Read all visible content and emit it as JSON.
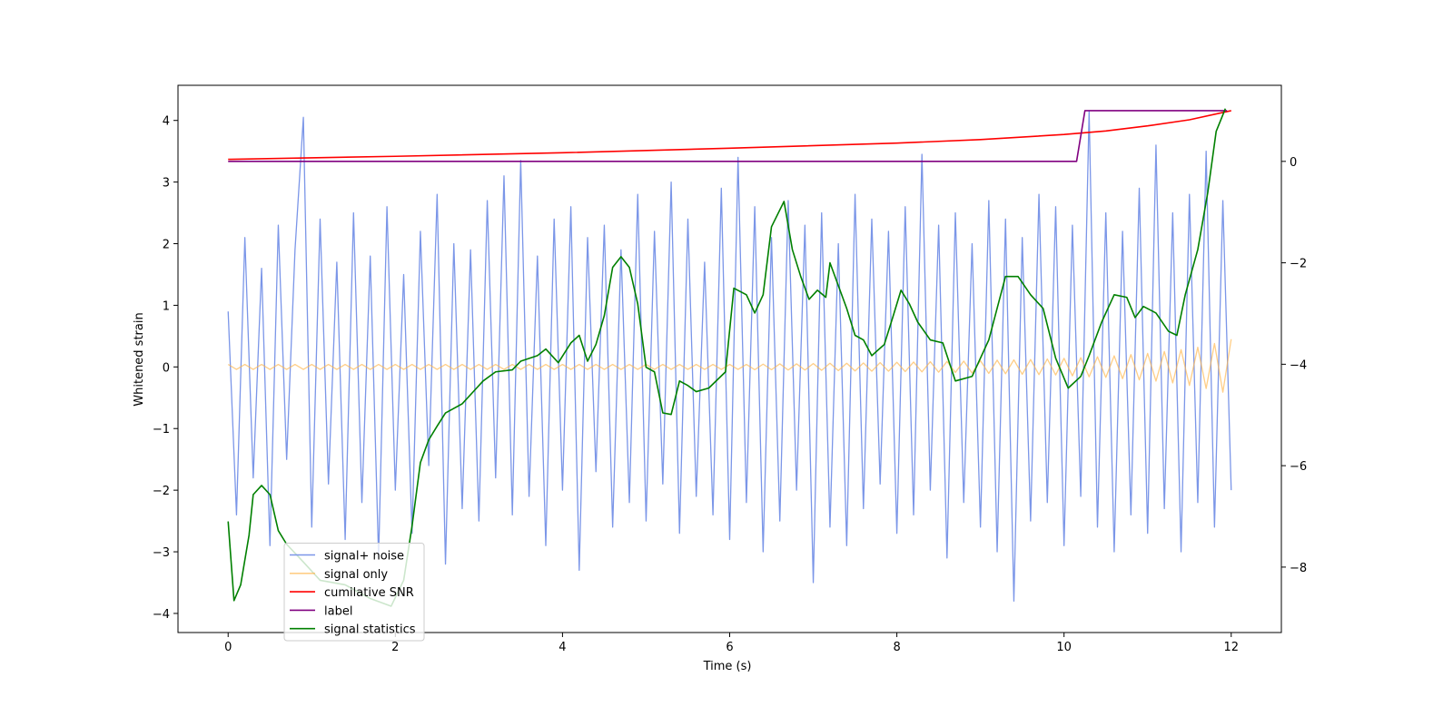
{
  "chart_data": {
    "type": "line",
    "xlabel": "Time (s)",
    "ylabel": "Whitened strain",
    "x": [
      0,
      0.1,
      0.2,
      0.3,
      0.4,
      0.5,
      0.6,
      0.7,
      0.8,
      0.9,
      1,
      1.1,
      1.2,
      1.3,
      1.4,
      1.5,
      1.6,
      1.7,
      1.8,
      1.9,
      2,
      2.1,
      2.2,
      2.3,
      2.4,
      2.5,
      2.6,
      2.7,
      2.8,
      2.9,
      3,
      3.1,
      3.2,
      3.3,
      3.4,
      3.5,
      3.6,
      3.7,
      3.8,
      3.9,
      4,
      4.1,
      4.2,
      4.3,
      4.4,
      4.5,
      4.6,
      4.7,
      4.8,
      4.9,
      5,
      5.1,
      5.2,
      5.3,
      5.4,
      5.5,
      5.6,
      5.7,
      5.8,
      5.9,
      6,
      6.1,
      6.2,
      6.3,
      6.4,
      6.5,
      6.6,
      6.7,
      6.8,
      6.9,
      7,
      7.1,
      7.2,
      7.3,
      7.4,
      7.5,
      7.6,
      7.7,
      7.8,
      7.9,
      8,
      8.1,
      8.2,
      8.3,
      8.4,
      8.5,
      8.6,
      8.7,
      8.8,
      8.9,
      9,
      9.1,
      9.2,
      9.3,
      9.4,
      9.5,
      9.6,
      9.7,
      9.8,
      9.9,
      10,
      10.1,
      10.2,
      10.3,
      10.4,
      10.5,
      10.6,
      10.7,
      10.8,
      10.9,
      11,
      11.1,
      11.2,
      11.3,
      11.4,
      11.5,
      11.6,
      11.7,
      11.8,
      11.9,
      12
    ],
    "series": [
      {
        "name": "signal+ noise",
        "color": "#7b96e8",
        "values": [
          0.9,
          -2.4,
          2.1,
          -1.8,
          1.6,
          -2.9,
          2.3,
          -1.5,
          1.9,
          4.05,
          -2.6,
          2.4,
          -1.9,
          1.7,
          -2.8,
          2.5,
          -2.2,
          1.8,
          -3.1,
          2.6,
          -2.0,
          1.5,
          -2.7,
          2.2,
          -1.6,
          2.8,
          -3.2,
          2.0,
          -2.3,
          1.9,
          -2.5,
          2.7,
          -1.8,
          3.1,
          -2.4,
          3.35,
          -2.1,
          1.8,
          -2.9,
          2.4,
          -2.0,
          2.6,
          -3.3,
          2.1,
          -1.7,
          2.3,
          -2.6,
          1.9,
          -2.2,
          2.8,
          -2.5,
          2.2,
          -1.9,
          3.0,
          -2.7,
          2.4,
          -2.1,
          1.7,
          -2.4,
          2.9,
          -2.8,
          3.4,
          -2.2,
          2.6,
          -3.0,
          2.1,
          -2.5,
          2.7,
          -2.0,
          2.3,
          -3.5,
          2.5,
          -2.6,
          2.0,
          -2.9,
          2.8,
          -2.3,
          2.4,
          -1.9,
          2.2,
          -2.7,
          2.6,
          -2.4,
          3.45,
          -2.0,
          2.3,
          -3.1,
          2.5,
          -2.2,
          2.0,
          -2.6,
          2.7,
          -3.0,
          2.4,
          -3.8,
          2.1,
          -2.5,
          2.8,
          -2.2,
          2.6,
          -2.9,
          2.3,
          -2.1,
          4.15,
          -2.6,
          2.5,
          -3.0,
          2.2,
          -2.4,
          2.9,
          -2.7,
          3.6,
          -2.3,
          2.5,
          -3.0,
          2.8,
          -2.2,
          3.5,
          -2.6,
          2.7,
          -2.0
        ]
      },
      {
        "name": "signal only",
        "color": "#ffb347",
        "values": [
          0.04,
          -0.04,
          0.04,
          -0.04,
          0.04,
          -0.04,
          0.04,
          -0.04,
          0.04,
          -0.04,
          0.04,
          -0.04,
          0.04,
          -0.04,
          0.04,
          -0.04,
          0.04,
          -0.04,
          0.04,
          -0.04,
          0.04,
          -0.04,
          0.04,
          -0.04,
          0.04,
          -0.04,
          0.04,
          -0.04,
          0.04,
          -0.04,
          0.04,
          -0.04,
          0.04,
          -0.04,
          0.04,
          -0.04,
          0.04,
          -0.04,
          0.04,
          -0.04,
          0.04,
          -0.04,
          0.04,
          -0.04,
          0.04,
          -0.04,
          0.04,
          -0.04,
          0.04,
          -0.04,
          0.04,
          -0.04,
          0.04,
          -0.04,
          0.04,
          -0.04,
          0.04,
          -0.04,
          0.04,
          -0.04,
          0.04,
          -0.04,
          0.04,
          -0.045,
          0.045,
          -0.045,
          0.05,
          -0.05,
          0.05,
          -0.05,
          0.055,
          -0.055,
          0.06,
          -0.06,
          0.06,
          -0.065,
          0.065,
          -0.07,
          0.07,
          -0.07,
          0.075,
          -0.075,
          0.08,
          -0.08,
          0.085,
          -0.085,
          0.09,
          -0.09,
          0.095,
          -0.1,
          0.1,
          -0.105,
          0.11,
          -0.11,
          0.115,
          -0.12,
          0.12,
          -0.125,
          0.13,
          -0.13,
          0.14,
          -0.145,
          0.15,
          -0.16,
          0.165,
          -0.17,
          0.18,
          -0.19,
          0.2,
          -0.21,
          0.22,
          -0.23,
          0.25,
          -0.26,
          0.28,
          -0.3,
          0.32,
          -0.35,
          0.38,
          -0.41,
          0.45
        ]
      },
      {
        "name": "cumilative SNR",
        "color": "#ff0000",
        "axis": "y2",
        "x": [
          0,
          2,
          4,
          6,
          8,
          9,
          10,
          10.5,
          11,
          11.5,
          12
        ],
        "values": [
          0.04,
          0.1,
          0.17,
          0.26,
          0.36,
          0.43,
          0.53,
          0.6,
          0.7,
          0.82,
          1.0
        ]
      },
      {
        "name": "label",
        "color": "#800080",
        "axis": "y2",
        "x": [
          0,
          10.15,
          10.25,
          11.95
        ],
        "values": [
          0,
          0,
          1,
          1
        ]
      },
      {
        "name": "signal statistics",
        "color": "#008000",
        "axis": "y2",
        "x": [
          0,
          0.07,
          0.15,
          0.25,
          0.3,
          0.4,
          0.5,
          0.6,
          0.7,
          0.9,
          1.1,
          1.4,
          1.7,
          1.95,
          2.1,
          2.2,
          2.3,
          2.4,
          2.5,
          2.6,
          2.8,
          2.95,
          3.05,
          3.2,
          3.4,
          3.5,
          3.7,
          3.8,
          3.95,
          4.1,
          4.2,
          4.3,
          4.4,
          4.5,
          4.6,
          4.7,
          4.8,
          4.9,
          5.0,
          5.1,
          5.2,
          5.3,
          5.4,
          5.5,
          5.6,
          5.75,
          5.95,
          6.05,
          6.2,
          6.3,
          6.4,
          6.5,
          6.65,
          6.75,
          6.85,
          6.95,
          7.05,
          7.15,
          7.2,
          7.3,
          7.4,
          7.5,
          7.6,
          7.7,
          7.85,
          7.95,
          8.05,
          8.15,
          8.25,
          8.4,
          8.55,
          8.7,
          8.9,
          9.1,
          9.3,
          9.45,
          9.6,
          9.75,
          9.9,
          10.05,
          10.2,
          10.3,
          10.45,
          10.6,
          10.75,
          10.85,
          10.95,
          11.1,
          11.25,
          11.35,
          11.45,
          11.6,
          11.72,
          11.82,
          11.93
        ],
        "values": [
          -7.1,
          -8.66,
          -8.35,
          -7.37,
          -6.57,
          -6.39,
          -6.57,
          -7.28,
          -7.55,
          -7.9,
          -8.26,
          -8.35,
          -8.62,
          -8.77,
          -8.26,
          -7.19,
          -5.94,
          -5.49,
          -5.22,
          -4.96,
          -4.78,
          -4.51,
          -4.33,
          -4.15,
          -4.11,
          -3.94,
          -3.83,
          -3.7,
          -3.97,
          -3.58,
          -3.43,
          -3.94,
          -3.61,
          -3.04,
          -2.09,
          -1.88,
          -2.09,
          -2.81,
          -4.06,
          -4.15,
          -4.96,
          -4.99,
          -4.33,
          -4.42,
          -4.54,
          -4.47,
          -4.15,
          -2.5,
          -2.63,
          -2.99,
          -2.63,
          -1.29,
          -0.79,
          -1.74,
          -2.27,
          -2.72,
          -2.54,
          -2.68,
          -2.0,
          -2.45,
          -2.9,
          -3.43,
          -3.52,
          -3.83,
          -3.61,
          -3.08,
          -2.54,
          -2.81,
          -3.17,
          -3.52,
          -3.58,
          -4.33,
          -4.24,
          -3.52,
          -2.27,
          -2.27,
          -2.63,
          -2.9,
          -3.88,
          -4.47,
          -4.24,
          -3.83,
          -3.17,
          -2.63,
          -2.68,
          -3.08,
          -2.86,
          -2.99,
          -3.35,
          -3.43,
          -2.63,
          -1.74,
          -0.61,
          0.59,
          1.04
        ]
      }
    ],
    "xlim": [
      -0.6,
      12.6
    ],
    "xticks": [
      0,
      2,
      4,
      6,
      8,
      10,
      12
    ],
    "ylim": [
      -4.31,
      4.57
    ],
    "yticks": [
      {
        "value": -4,
        "label": "−4"
      },
      {
        "value": -3,
        "label": "−3"
      },
      {
        "value": -2,
        "label": "−2"
      },
      {
        "value": -1,
        "label": "−1"
      },
      0,
      1,
      2,
      3,
      4
    ],
    "y2lim": [
      -9.29,
      1.5
    ],
    "y2ticks": [
      {
        "value": -8,
        "label": "−8"
      },
      {
        "value": -6,
        "label": "−6"
      },
      {
        "value": -4,
        "label": "−4"
      },
      {
        "value": -2,
        "label": "−2"
      },
      0
    ],
    "legend": "lower left"
  }
}
